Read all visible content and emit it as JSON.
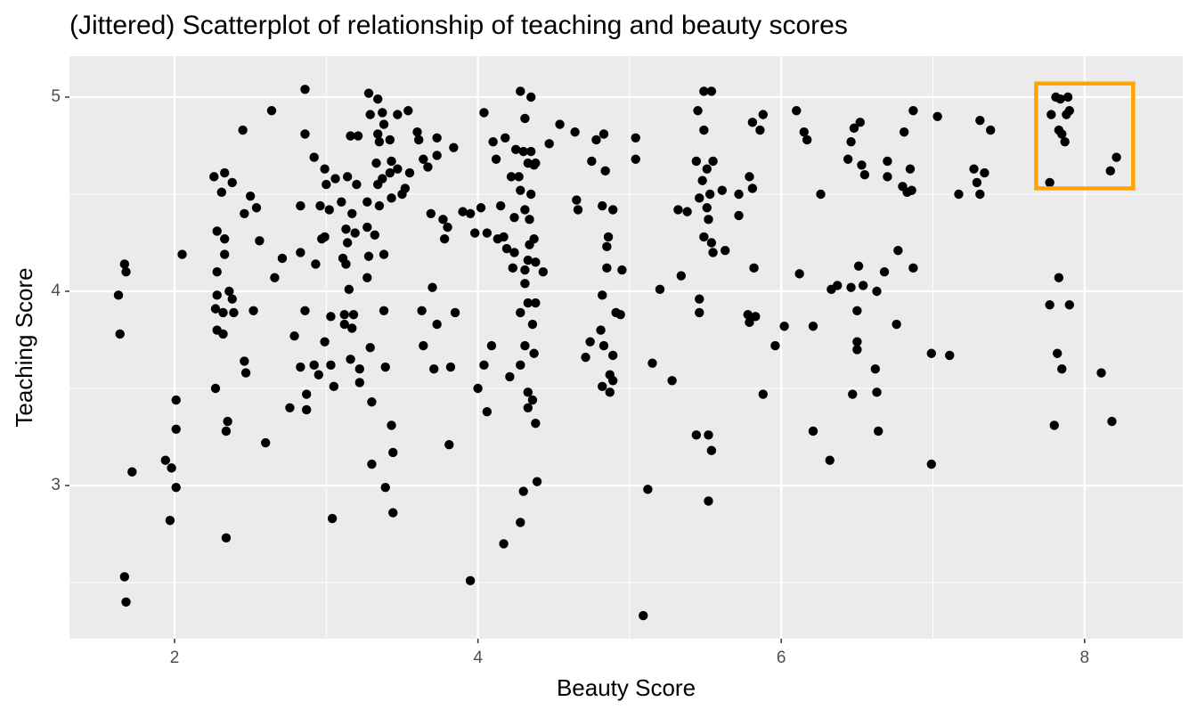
{
  "chart_data": {
    "type": "scatter",
    "title": "(Jittered) Scatterplot of relationship of teaching and beauty scores",
    "x_label": "Beauty Score",
    "y_label": "Teaching Score",
    "xlim": [
      1.307,
      8.647
    ],
    "ylim": [
      2.211,
      5.211
    ],
    "xticks": [
      2,
      4,
      6,
      8
    ],
    "yticks": [
      3,
      4,
      5
    ],
    "x_minor_grid": [
      3,
      5,
      7
    ],
    "y_minor_grid": [
      2.5,
      3.5,
      4.5
    ],
    "grid": true,
    "color": "#000000",
    "highlight": {
      "x": [
        7.68,
        8.32
      ],
      "y": [
        4.53,
        5.07
      ],
      "color": "#FFA500"
    },
    "x": [
      1.63,
      1.67,
      1.68,
      1.64,
      1.67,
      1.68,
      1.72,
      1.94,
      1.98,
      1.97,
      2.01,
      2.01,
      2.01,
      2.05,
      2.26,
      2.33,
      2.38,
      2.31,
      2.28,
      2.33,
      2.33,
      2.28,
      2.28,
      2.36,
      2.38,
      2.27,
      2.32,
      2.39,
      2.28,
      2.32,
      2.35,
      2.34,
      2.27,
      2.34,
      2.45,
      2.46,
      2.5,
      2.54,
      2.56,
      2.52,
      2.46,
      2.47,
      2.6,
      2.64,
      2.66,
      2.71,
      2.76,
      2.79,
      2.83,
      2.86,
      2.86,
      2.87,
      2.87,
      2.86,
      2.83,
      2.83,
      2.92,
      2.93,
      2.92,
      2.95,
      2.96,
      2.97,
      2.99,
      2.99,
      3.0,
      2.99,
      3.02,
      3.03,
      3.04,
      3.03,
      3.05,
      3.06,
      3.1,
      3.11,
      3.13,
      3.12,
      3.12,
      3.15,
      3.16,
      3.14,
      3.13,
      3.14,
      3.17,
      3.19,
      3.18,
      3.17,
      3.16,
      3.21,
      3.2,
      3.22,
      3.22,
      3.27,
      3.27,
      3.27,
      3.28,
      3.29,
      3.28,
      3.29,
      3.3,
      3.3,
      3.32,
      3.33,
      3.34,
      3.34,
      3.35,
      3.34,
      3.35,
      3.37,
      3.38,
      3.37,
      3.38,
      3.38,
      3.39,
      3.39,
      3.42,
      3.43,
      3.43,
      3.42,
      3.43,
      3.44,
      3.44,
      3.47,
      3.47,
      3.5,
      3.52,
      3.54,
      3.55,
      3.6,
      3.61,
      3.64,
      3.63,
      3.64,
      3.67,
      3.69,
      3.7,
      3.73,
      3.71,
      3.73,
      3.73,
      3.77,
      3.78,
      3.8,
      3.81,
      3.82,
      3.84,
      3.85,
      3.9,
      3.95,
      3.95,
      3.98,
      4.0,
      4.02,
      4.04,
      4.04,
      4.06,
      4.06,
      4.09,
      4.1,
      4.12,
      4.13,
      4.15,
      4.17,
      4.17,
      4.18,
      4.19,
      4.21,
      4.22,
      4.24,
      4.24,
      4.23,
      4.25,
      4.27,
      4.28,
      4.28,
      4.28,
      4.28,
      4.28,
      4.3,
      4.3,
      4.31,
      4.31,
      4.31,
      4.31,
      4.33,
      4.31,
      4.34,
      4.35,
      4.33,
      4.33,
      4.33,
      4.33,
      4.34,
      4.35,
      4.35,
      4.37,
      4.36,
      4.36,
      4.37,
      4.37,
      4.38,
      4.38,
      4.38,
      4.38,
      4.39,
      4.43,
      4.47,
      4.54,
      4.64,
      4.65,
      4.66,
      4.71,
      4.75,
      4.74,
      4.78,
      4.82,
      4.83,
      4.84,
      4.85,
      4.82,
      4.81,
      4.83,
      4.82,
      4.85,
      4.86,
      4.87,
      4.87,
      4.89,
      4.89,
      4.89,
      4.91,
      4.94,
      4.95,
      5.04,
      5.04,
      5.09,
      5.12,
      5.15,
      5.2,
      5.28,
      5.32,
      5.34,
      5.38,
      5.44,
      5.44,
      5.45,
      5.46,
      5.46,
      5.46,
      5.48,
      5.49,
      5.49,
      5.51,
      5.49,
      5.51,
      5.52,
      5.53,
      5.54,
      5.52,
      5.52,
      5.54,
      5.55,
      5.54,
      5.55,
      5.61,
      5.63,
      5.72,
      5.72,
      5.78,
      5.79,
      5.79,
      5.81,
      5.81,
      5.82,
      5.83,
      5.86,
      5.88,
      5.88,
      5.96,
      6.02,
      6.1,
      6.12,
      6.15,
      6.17,
      6.21,
      6.21,
      6.26,
      6.32,
      6.33,
      6.37,
      6.44,
      6.46,
      6.48,
      6.46,
      6.47,
      6.5,
      6.5,
      6.5,
      6.51,
      6.54,
      6.52,
      6.53,
      6.55,
      6.62,
      6.63,
      6.64,
      6.63,
      6.68,
      6.7,
      6.7,
      6.76,
      6.77,
      6.8,
      6.81,
      6.83,
      6.85,
      6.86,
      6.87,
      6.87,
      6.99,
      6.99,
      7.03,
      7.11,
      7.17,
      7.27,
      7.29,
      7.31,
      7.31,
      7.34,
      7.38,
      7.77,
      7.77,
      7.78,
      7.8,
      7.81,
      7.82,
      7.83,
      7.83,
      7.84,
      7.85,
      7.85,
      7.87,
      7.88,
      7.89,
      7.9,
      7.9,
      8.11,
      8.17,
      8.18,
      8.21
    ],
    "values": [
      3.98,
      4.14,
      4.1,
      3.78,
      2.53,
      2.4,
      3.07,
      3.13,
      3.09,
      2.82,
      2.99,
      3.44,
      3.29,
      4.19,
      4.59,
      4.61,
      4.56,
      4.51,
      4.31,
      4.27,
      4.19,
      4.1,
      3.98,
      4.0,
      3.96,
      3.91,
      3.89,
      3.89,
      3.8,
      3.78,
      3.33,
      3.28,
      3.5,
      2.73,
      4.83,
      4.4,
      4.49,
      4.43,
      4.26,
      3.9,
      3.64,
      3.58,
      3.22,
      4.93,
      4.07,
      4.17,
      3.4,
      3.77,
      3.61,
      3.9,
      5.04,
      3.47,
      3.39,
      4.81,
      4.44,
      4.2,
      4.69,
      4.14,
      3.62,
      3.57,
      4.44,
      4.27,
      4.63,
      3.74,
      4.55,
      4.28,
      4.42,
      3.62,
      2.83,
      3.87,
      3.51,
      4.58,
      4.46,
      4.17,
      4.14,
      3.88,
      3.83,
      4.01,
      4.8,
      4.59,
      4.32,
      4.25,
      4.4,
      4.3,
      3.88,
      3.81,
      3.65,
      4.8,
      4.55,
      3.6,
      3.53,
      4.46,
      4.33,
      4.07,
      4.18,
      4.91,
      5.02,
      3.71,
      3.43,
      3.11,
      4.29,
      4.66,
      4.99,
      4.81,
      4.77,
      4.55,
      4.44,
      4.92,
      4.86,
      4.58,
      4.19,
      3.9,
      3.61,
      2.99,
      4.61,
      4.48,
      4.67,
      4.78,
      3.31,
      3.17,
      2.86,
      4.91,
      4.63,
      4.5,
      4.53,
      4.93,
      4.61,
      4.82,
      4.78,
      4.68,
      3.9,
      3.72,
      4.64,
      4.4,
      4.02,
      4.79,
      3.6,
      4.7,
      3.83,
      4.37,
      4.27,
      4.33,
      3.21,
      3.61,
      4.74,
      3.89,
      4.41,
      4.4,
      2.51,
      4.3,
      3.5,
      4.43,
      3.62,
      4.92,
      3.38,
      4.3,
      3.72,
      4.77,
      4.68,
      4.27,
      4.44,
      4.28,
      2.7,
      4.79,
      4.22,
      3.56,
      4.59,
      4.38,
      4.2,
      4.12,
      4.73,
      4.59,
      3.89,
      3.62,
      2.81,
      5.03,
      4.52,
      4.72,
      2.97,
      4.89,
      4.11,
      4.42,
      3.72,
      4.66,
      4.04,
      4.37,
      4.72,
      4.16,
      3.94,
      3.48,
      3.4,
      4.24,
      5.0,
      4.5,
      4.65,
      3.83,
      3.44,
      3.68,
      4.27,
      3.94,
      4.66,
      4.15,
      3.32,
      3.02,
      4.1,
      4.76,
      4.86,
      4.82,
      4.47,
      4.42,
      3.66,
      4.67,
      3.74,
      4.78,
      4.44,
      4.81,
      4.62,
      4.23,
      3.98,
      3.8,
      3.72,
      3.51,
      4.12,
      4.28,
      3.48,
      3.57,
      4.42,
      3.67,
      3.54,
      3.89,
      3.88,
      4.11,
      4.68,
      4.79,
      2.33,
      2.98,
      3.63,
      4.01,
      3.54,
      4.42,
      4.08,
      4.41,
      3.26,
      4.67,
      4.93,
      4.48,
      3.89,
      3.96,
      4.57,
      5.03,
      4.83,
      4.63,
      4.28,
      4.43,
      3.26,
      4.5,
      5.03,
      4.37,
      2.92,
      4.25,
      4.67,
      3.18,
      4.2,
      4.52,
      4.21,
      4.39,
      4.5,
      3.88,
      3.84,
      4.59,
      4.53,
      4.87,
      4.12,
      3.87,
      4.83,
      4.91,
      3.47,
      3.72,
      3.82,
      4.93,
      4.09,
      4.82,
      4.78,
      3.28,
      3.82,
      4.5,
      3.13,
      4.01,
      4.03,
      4.68,
      4.77,
      4.84,
      4.02,
      3.47,
      3.7,
      3.9,
      3.74,
      4.13,
      4.03,
      4.87,
      4.65,
      4.6,
      3.6,
      3.48,
      3.28,
      4.0,
      4.1,
      4.59,
      4.67,
      3.83,
      4.21,
      4.54,
      4.82,
      4.51,
      4.63,
      4.52,
      4.93,
      4.12,
      3.68,
      3.11,
      4.9,
      3.67,
      4.5,
      4.63,
      4.56,
      4.5,
      4.88,
      4.61,
      4.83,
      4.56,
      3.93,
      4.91,
      3.31,
      5.0,
      3.68,
      4.83,
      4.07,
      4.99,
      4.81,
      3.6,
      4.77,
      4.91,
      5.0,
      4.93,
      3.93,
      3.58,
      4.62,
      3.33,
      4.69
    ]
  }
}
